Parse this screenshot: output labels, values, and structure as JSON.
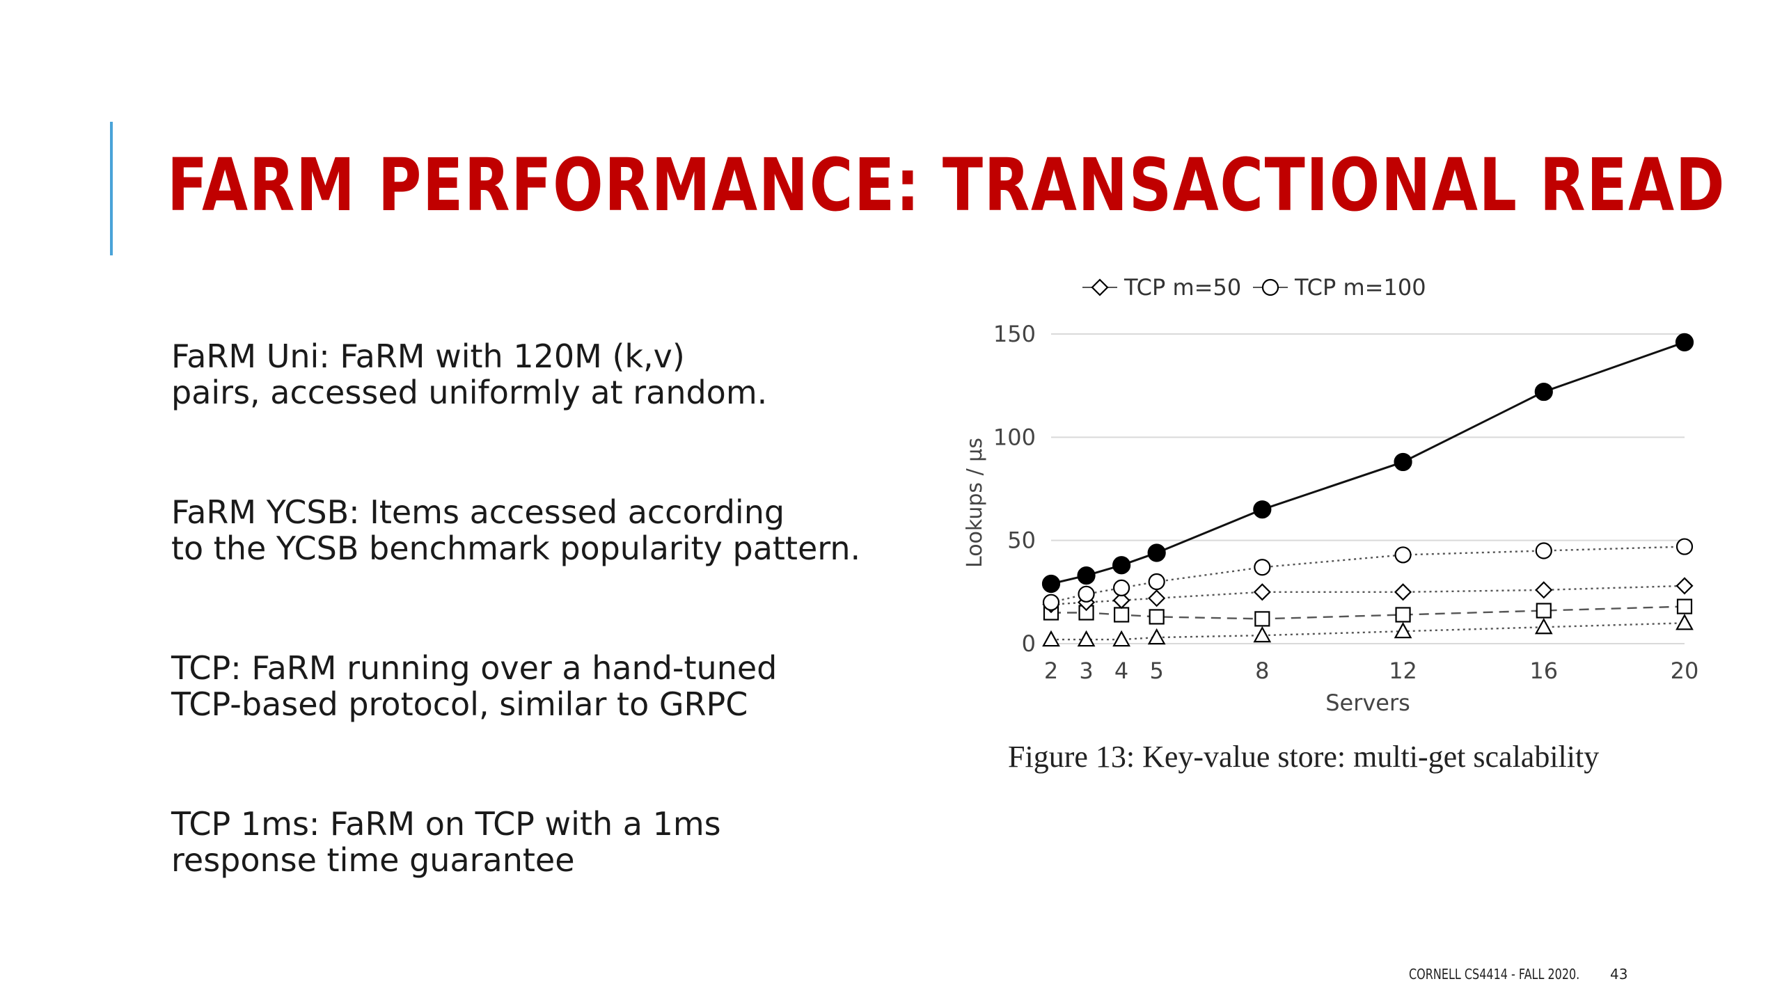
{
  "slide": {
    "title": "FARM PERFORMANCE: TRANSACTIONAL READ",
    "bullets": [
      "FaRM Uni:  FaRM with 120M (k,v)\npairs, accessed uniformly at random.",
      "FaRM YCSB:  Items accessed according\nto the YCSB benchmark popularity pattern.",
      "TCP:  FaRM running over a hand-tuned\nTCP-based protocol, similar to GRPC",
      "TCP 1ms:  FaRM on TCP with a 1ms\nresponse time guarantee"
    ],
    "caption": "Figure 13: Key-value store: multi-get scalability",
    "footer": "CORNELL CS4414 - FALL 2020.",
    "page_number": "43",
    "colors": {
      "title": "#c00000",
      "accent_bar": "#4aa3d8"
    }
  },
  "chart_data": {
    "type": "line",
    "x": [
      2,
      3,
      4,
      5,
      8,
      12,
      16,
      20
    ],
    "xticks": [
      "2",
      "3",
      "4",
      "5",
      "8",
      "12",
      "16",
      "20"
    ],
    "xlabel": "Servers",
    "ylabel": "Lookups / µs",
    "ylim": [
      0,
      150
    ],
    "yticks": [
      "0",
      "50",
      "100",
      "150"
    ],
    "grid": true,
    "legend": {
      "position": "top",
      "visible_entries": [
        "TCP m=50",
        "TCP m=100"
      ]
    },
    "series": [
      {
        "marker": "filled-circle",
        "line": "solid",
        "values": [
          29,
          33,
          38,
          44,
          65,
          88,
          122,
          146
        ]
      },
      {
        "name": "TCP m=100",
        "marker": "open-circle",
        "line": "dotted",
        "values": [
          20,
          24,
          27,
          30,
          37,
          43,
          45,
          47
        ]
      },
      {
        "name": "TCP m=50",
        "marker": "open-diamond",
        "line": "dotted",
        "values": [
          19,
          20,
          21,
          22,
          25,
          25,
          26,
          28
        ]
      },
      {
        "marker": "open-square",
        "line": "dashed",
        "values": [
          15,
          15,
          14,
          13,
          12,
          14,
          16,
          18
        ]
      },
      {
        "marker": "open-triangle",
        "line": "dotted",
        "values": [
          2,
          2,
          2,
          3,
          4,
          6,
          8,
          10
        ]
      }
    ]
  }
}
